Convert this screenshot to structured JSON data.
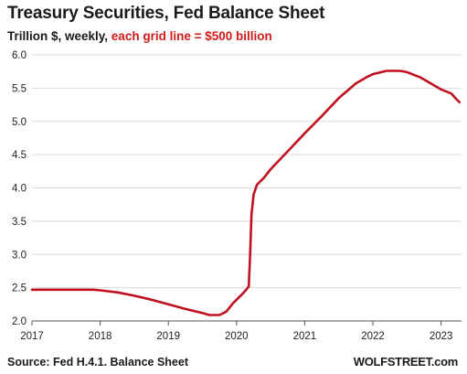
{
  "header": {
    "title": "Treasury Securities, Fed Balance Sheet",
    "subtitle_main": "Trillion $, weekly, ",
    "subtitle_highlight": "each grid line = $500 billion"
  },
  "footer": {
    "source": "Source: Fed H.4.1. Balance Sheet",
    "brand": "WOLFSTREET.com"
  },
  "colors": {
    "line": "#c0101f",
    "highlight": "#d11a1a",
    "grid": "#d9d9d9"
  },
  "chart_data": {
    "type": "line",
    "title": "Treasury Securities, Fed Balance Sheet",
    "subtitle": "Trillion $, weekly, each grid line = $500 billion",
    "xlabel": "",
    "ylabel": "",
    "xlim": [
      2017.0,
      2023.3
    ],
    "ylim": [
      2.0,
      6.0
    ],
    "grid": "horizontal",
    "x_ticks": [
      "2017",
      "2018",
      "2019",
      "2020",
      "2021",
      "2022",
      "2023"
    ],
    "y_ticks": [
      "2.0",
      "2.5",
      "3.0",
      "3.5",
      "4.0",
      "4.5",
      "5.0",
      "5.5",
      "6.0"
    ],
    "series": [
      {
        "x": [
          2017.0,
          2017.5,
          2017.9,
          2018.0,
          2018.25,
          2018.5,
          2018.75,
          2019.0,
          2019.25,
          2019.5,
          2019.6,
          2019.75,
          2019.85,
          2019.95,
          2020.1,
          2020.15,
          2020.18,
          2020.2,
          2020.22,
          2020.25,
          2020.3,
          2020.4,
          2020.5,
          2020.75,
          2021.0,
          2021.25,
          2021.5,
          2021.75,
          2021.9,
          2022.0,
          2022.2,
          2022.4,
          2022.5,
          2022.7,
          2022.85,
          2023.0,
          2023.15,
          2023.22,
          2023.27
        ],
        "y": [
          2.47,
          2.47,
          2.47,
          2.46,
          2.43,
          2.38,
          2.32,
          2.25,
          2.18,
          2.12,
          2.09,
          2.09,
          2.14,
          2.27,
          2.42,
          2.48,
          2.52,
          3.0,
          3.6,
          3.9,
          4.05,
          4.15,
          4.28,
          4.55,
          4.82,
          5.08,
          5.35,
          5.57,
          5.66,
          5.71,
          5.76,
          5.76,
          5.74,
          5.66,
          5.57,
          5.48,
          5.42,
          5.34,
          5.29
        ]
      }
    ]
  }
}
